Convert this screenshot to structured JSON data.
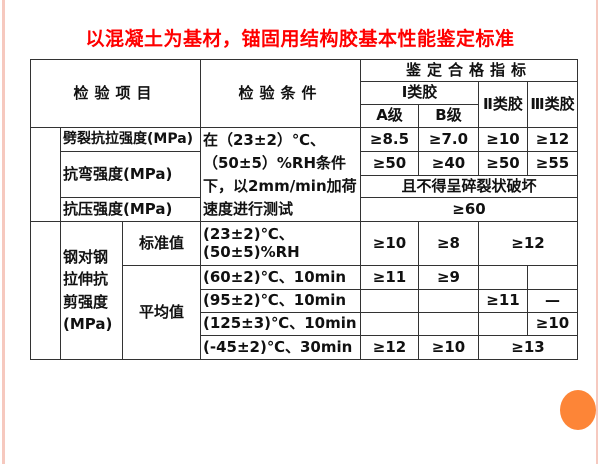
{
  "title": "以混凝土为基材，锚固用结构胶基本性能鉴定标准",
  "header": {
    "item": "检验项目",
    "condition": "检验条件",
    "criteria": "鉴定合格指标",
    "class1": "Ⅰ类胶",
    "class2": "Ⅱ类胶",
    "class3": "Ⅲ类胶",
    "gradeA": "A级",
    "gradeB": "B级"
  },
  "group1": {
    "condition": [
      "在（23±2）℃、",
      "（50±5）%RH条件",
      "下，以2mm/min加荷",
      "速度进行测试"
    ],
    "split": {
      "label": "劈裂抗拉强度(MPa)",
      "values": [
        "≥8.5",
        "≥7.0",
        "≥10",
        "≥12"
      ]
    },
    "bending": {
      "label": "抗弯强度(MPa)",
      "values": [
        "≥50",
        "≥40",
        "≥50",
        "≥55"
      ],
      "note": "且不得呈碎裂状破坏"
    },
    "compress": {
      "label": "抗压强度(MPa)",
      "value": "≥60"
    }
  },
  "group2": {
    "label": "钢对钢拉伸抗剪强度(MPa)",
    "standard": {
      "label": "标准值",
      "condition": [
        "(23±2)℃、",
        "(50±5)%RH"
      ],
      "values": [
        "≥10",
        "≥8",
        "≥12"
      ]
    },
    "average": {
      "label": "平均值",
      "rows": [
        {
          "condition": "(60±2)℃、10min",
          "values": [
            "≥11",
            "≥9",
            "",
            ""
          ]
        },
        {
          "condition": "(95±2)℃、10min",
          "values": [
            "",
            "",
            "≥11",
            "—"
          ]
        },
        {
          "condition": "(125±3)℃、10min",
          "values": [
            "",
            "",
            "",
            "≥10"
          ]
        },
        {
          "condition": "(-45±2)℃、30min",
          "values": [
            "≥12",
            "≥10",
            "≥13"
          ]
        }
      ]
    }
  },
  "colors": {
    "title": "#ff0000",
    "accent_dot": "#fd8537",
    "border": "#f6c9bf"
  }
}
